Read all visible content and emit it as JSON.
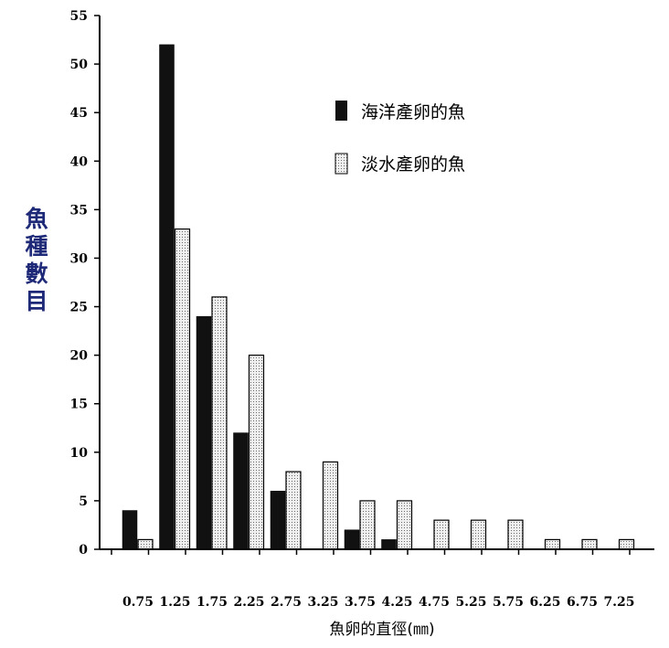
{
  "chart_data": {
    "type": "bar",
    "categories": [
      "0.75",
      "1.25",
      "1.75",
      "2.25",
      "2.75",
      "3.25",
      "3.75",
      "4.25",
      "4.75",
      "5.25",
      "5.75",
      "6.25",
      "6.75",
      "7.25"
    ],
    "series": [
      {
        "name": "海洋產卵的魚",
        "color": "#111111",
        "values": [
          4,
          52,
          24,
          12,
          6,
          0,
          2,
          1,
          0,
          0,
          0,
          0,
          0,
          0
        ]
      },
      {
        "name": "淡水產卵的魚",
        "color": "#d8d8d8",
        "values": [
          1,
          33,
          26,
          20,
          8,
          9,
          5,
          5,
          3,
          3,
          3,
          1,
          1,
          1
        ]
      }
    ],
    "ylim": [
      0,
      55
    ],
    "yticks": [
      "0",
      "5",
      "10",
      "15",
      "20",
      "25",
      "30",
      "35",
      "40",
      "45",
      "50",
      "55"
    ],
    "ylabel": "魚種數目",
    "xlabel": "魚卵的直徑(㎜)",
    "legend_position": "top-right",
    "grid": false
  }
}
